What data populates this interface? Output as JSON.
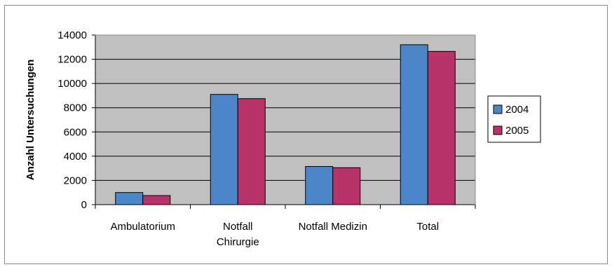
{
  "chart_data": {
    "type": "bar",
    "title": "",
    "xlabel": "",
    "ylabel": "Anzahl Untersuchungen",
    "categories": [
      [
        "Ambulatorium"
      ],
      [
        "Notfall",
        "Chirurgie"
      ],
      [
        "Notfall Medizin"
      ],
      [
        "Total"
      ]
    ],
    "series": [
      {
        "name": "2004",
        "color": "#4a86c8",
        "values": [
          1000,
          9100,
          3150,
          13200
        ]
      },
      {
        "name": "2005",
        "color": "#b8336a",
        "values": [
          750,
          8750,
          3050,
          12650
        ]
      }
    ],
    "ylim": [
      0,
      14000
    ],
    "yticks": [
      0,
      2000,
      4000,
      6000,
      8000,
      10000,
      12000,
      14000
    ],
    "grid": true,
    "plot_background": "#c0c0c0",
    "legend_placement": "right"
  }
}
